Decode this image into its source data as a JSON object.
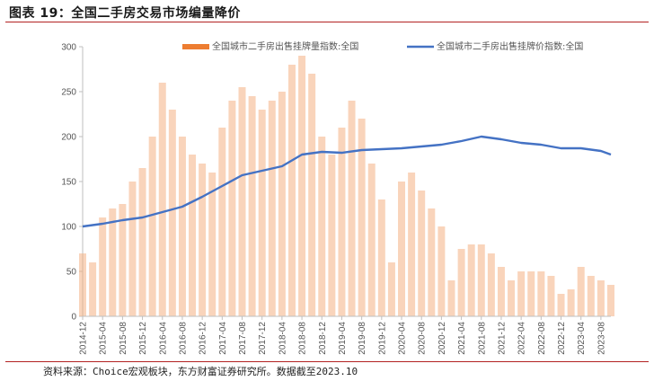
{
  "header": {
    "title": "图表 19：全国二手房交易市场编量降价"
  },
  "footer": {
    "source": "资料来源：Choice宏观板块，东方财富证券研究所。数据截至2023.10"
  },
  "colors": {
    "bars": "#f4b183",
    "bars_legend": "#ed7d31",
    "line": "#4472c4",
    "title_rule": "#b22222"
  },
  "chart_data": {
    "type": "bar+line",
    "legend_position": "top",
    "ylim": [
      0,
      300
    ],
    "yticks": [
      0,
      50,
      100,
      150,
      200,
      250,
      300
    ],
    "x_tick_labels": [
      "2014-12",
      "2015-04",
      "2015-08",
      "2015-12",
      "2016-04",
      "2016-08",
      "2016-12",
      "2017-04",
      "2017-08",
      "2017-12",
      "2018-04",
      "2018-08",
      "2018-12",
      "2019-04",
      "2019-08",
      "2019-12",
      "2020-04",
      "2020-08",
      "2020-12",
      "2021-04",
      "2021-08",
      "2021-12",
      "2022-04",
      "2022-08",
      "2022-12",
      "2023-04",
      "2023-08"
    ],
    "series": [
      {
        "name": "全国城市二手房出售挂牌量指数:全国",
        "kind": "bar",
        "x": [
          "2014-12",
          "2015-02",
          "2015-04",
          "2015-06",
          "2015-08",
          "2015-10",
          "2015-12",
          "2016-02",
          "2016-04",
          "2016-06",
          "2016-08",
          "2016-10",
          "2016-12",
          "2017-02",
          "2017-04",
          "2017-06",
          "2017-08",
          "2017-10",
          "2017-12",
          "2018-02",
          "2018-04",
          "2018-06",
          "2018-08",
          "2018-10",
          "2018-12",
          "2019-02",
          "2019-04",
          "2019-06",
          "2019-08",
          "2019-10",
          "2019-12",
          "2020-02",
          "2020-04",
          "2020-06",
          "2020-08",
          "2020-10",
          "2020-12",
          "2021-02",
          "2021-04",
          "2021-06",
          "2021-08",
          "2021-10",
          "2021-12",
          "2022-02",
          "2022-04",
          "2022-06",
          "2022-08",
          "2022-10",
          "2022-12",
          "2023-02",
          "2023-04",
          "2023-06",
          "2023-08",
          "2023-10"
        ],
        "values": [
          70,
          60,
          110,
          120,
          125,
          150,
          165,
          200,
          260,
          230,
          200,
          180,
          170,
          160,
          210,
          240,
          255,
          245,
          230,
          240,
          250,
          280,
          290,
          270,
          200,
          180,
          210,
          240,
          220,
          170,
          130,
          60,
          150,
          160,
          140,
          120,
          100,
          40,
          75,
          80,
          80,
          70,
          55,
          40,
          50,
          50,
          50,
          45,
          25,
          30,
          55,
          45,
          40,
          35
        ]
      },
      {
        "name": "全国城市二手房出售挂牌价指数:全国",
        "kind": "line",
        "x": [
          "2014-12",
          "2015-04",
          "2015-08",
          "2015-12",
          "2016-04",
          "2016-08",
          "2016-12",
          "2017-04",
          "2017-08",
          "2017-12",
          "2018-04",
          "2018-08",
          "2018-12",
          "2019-04",
          "2019-08",
          "2019-12",
          "2020-04",
          "2020-08",
          "2020-12",
          "2021-04",
          "2021-08",
          "2021-12",
          "2022-04",
          "2022-08",
          "2022-12",
          "2023-04",
          "2023-08",
          "2023-10"
        ],
        "values": [
          100,
          103,
          107,
          110,
          116,
          122,
          133,
          145,
          157,
          162,
          167,
          180,
          183,
          182,
          185,
          186,
          187,
          189,
          191,
          195,
          200,
          197,
          193,
          191,
          187,
          187,
          184,
          180
        ]
      }
    ]
  }
}
